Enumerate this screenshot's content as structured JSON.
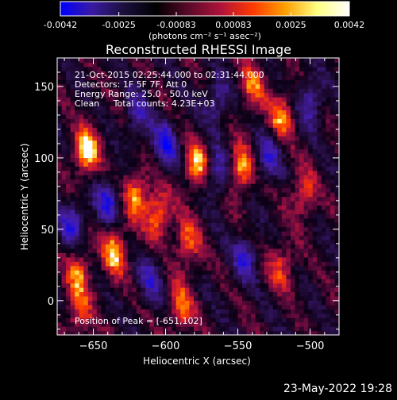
{
  "colorbar": {
    "ticks": [
      "-0.0042",
      "-0.0025",
      "-0.00083",
      "0.00083",
      "0.0025",
      "0.0042"
    ],
    "values": [
      -0.0042,
      -0.0025,
      -0.00083,
      0.00083,
      0.0025,
      0.0042
    ],
    "unit_label": "(photons cm⁻² s⁻¹ asec⁻²)",
    "colors": [
      "#0000ff",
      "#3a1aa0",
      "#1a0f3a",
      "#000000",
      "#5a0a2a",
      "#b0123a",
      "#ff3a00",
      "#ffa000",
      "#ffff80",
      "#ffffff"
    ]
  },
  "chart_data": {
    "type": "heatmap",
    "title": "Reconstructed RHESSI Image",
    "xlabel": "Heliocentric X (arcsec)",
    "ylabel": "Heliocentric Y (arcsec)",
    "xlim": [
      -675,
      -480
    ],
    "ylim": [
      -24,
      170
    ],
    "xticks": [
      -650,
      -600,
      -550,
      -500
    ],
    "yticks": [
      0,
      50,
      100,
      150
    ],
    "info_lines": [
      "21-Oct-2015 02:25:44.000 to 02:31:44.000",
      "Detectors: 1F 5F 7F, Att 0",
      "Energy Range: 25.0 - 50.0 keV",
      "Clean     Total counts: 4.23E+03"
    ],
    "peak_label": "Position of Peak = [-651,102]",
    "peak": [
      -651,
      102
    ],
    "bright_sources": [
      {
        "x": -655,
        "y": 105,
        "value": 0.0042
      },
      {
        "x": -635,
        "y": 35,
        "value": 0.0036
      },
      {
        "x": -605,
        "y": 60,
        "value": 0.0034
      },
      {
        "x": -578,
        "y": 95,
        "value": 0.0038
      },
      {
        "x": -548,
        "y": 92,
        "value": 0.0037
      },
      {
        "x": -620,
        "y": 75,
        "value": 0.0033
      },
      {
        "x": -585,
        "y": 40,
        "value": 0.0028
      },
      {
        "x": -590,
        "y": -5,
        "value": 0.003
      },
      {
        "x": -520,
        "y": 130,
        "value": 0.003
      },
      {
        "x": -660,
        "y": 20,
        "value": 0.0028
      },
      {
        "x": -660,
        "y": -10,
        "value": 0.0025
      },
      {
        "x": -520,
        "y": 25,
        "value": 0.0024
      },
      {
        "x": -505,
        "y": 75,
        "value": 0.0026
      },
      {
        "x": -540,
        "y": 150,
        "value": 0.0026
      }
    ],
    "dark_sources": [
      {
        "x": -640,
        "y": 70,
        "value": -0.003
      },
      {
        "x": -600,
        "y": 110,
        "value": -0.0032
      },
      {
        "x": -565,
        "y": 90,
        "value": -0.003
      },
      {
        "x": -530,
        "y": 100,
        "value": -0.0026
      },
      {
        "x": -500,
        "y": 140,
        "value": -0.0028
      },
      {
        "x": -545,
        "y": 30,
        "value": -0.0025
      },
      {
        "x": -665,
        "y": 55,
        "value": -0.0027
      },
      {
        "x": -620,
        "y": 130,
        "value": -0.0022
      },
      {
        "x": -565,
        "y": 140,
        "value": -0.0024
      },
      {
        "x": -610,
        "y": 15,
        "value": -0.0022
      }
    ]
  },
  "footer": {
    "date": "23-May-2022 19:28"
  }
}
